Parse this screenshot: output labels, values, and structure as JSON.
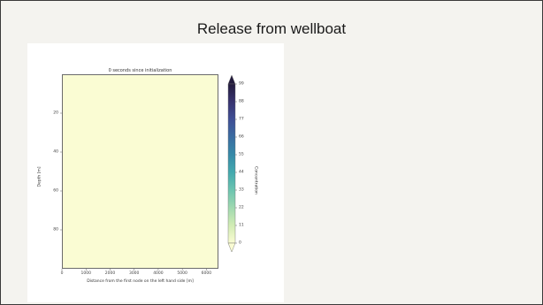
{
  "slide": {
    "title": "Release from wellboat"
  },
  "chart_data": {
    "type": "heatmap",
    "title": "0 seconds since initialization",
    "xlabel": "Distance from the first node on the left hand side [m]",
    "ylabel": "Depth [m]",
    "x_ticks": [
      0,
      1000,
      2000,
      3000,
      4000,
      5000,
      6000
    ],
    "y_ticks": [
      20,
      40,
      60,
      80
    ],
    "xlim": [
      0,
      6500
    ],
    "ylim": [
      100,
      0
    ],
    "field_value": 0,
    "colorbar": {
      "label": "Concentration",
      "ticks": [
        0,
        11,
        22,
        33,
        44,
        55,
        66,
        77,
        88,
        99
      ],
      "range": [
        0,
        99
      ],
      "extend": "both",
      "colors": [
        "#fafcd3",
        "#d2ecb4",
        "#a0d9b0",
        "#6cc4b0",
        "#43a9ae",
        "#368aa8",
        "#3a6ca1",
        "#3f4e95",
        "#38336f",
        "#231b3d"
      ]
    }
  }
}
